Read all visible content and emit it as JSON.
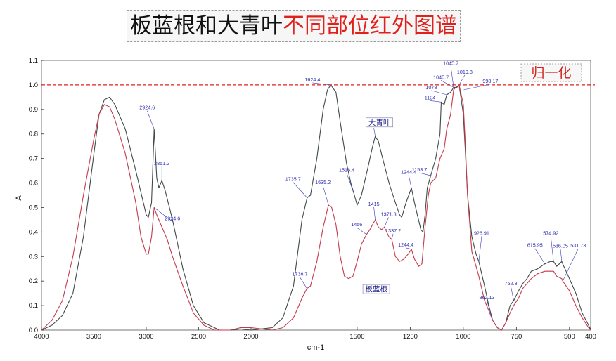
{
  "title": {
    "black": "板蓝根和大青叶",
    "red": "不同部位红外图谱"
  },
  "chart_data": {
    "type": "line",
    "xlabel": "cm-1",
    "ylabel": "A",
    "xlim": [
      4000,
      400
    ],
    "ylim": [
      0.0,
      1.1
    ],
    "x_ticks": [
      "4000",
      "3500",
      "3000",
      "2500",
      "2000",
      "1500",
      "1250",
      "1000",
      "750",
      "500",
      "400"
    ],
    "y_ticks": [
      "0.0",
      "0.1",
      "0.2",
      "0.3",
      "0.4",
      "0.5",
      "0.6",
      "0.7",
      "0.8",
      "0.9",
      "1.0",
      "1.1"
    ],
    "x_tick_values": [
      4000,
      3500,
      3000,
      2500,
      2000,
      1500,
      1250,
      1000,
      750,
      500,
      400
    ],
    "y_tick_values": [
      0.0,
      0.1,
      0.2,
      0.3,
      0.4,
      0.5,
      0.6,
      0.7,
      0.8,
      0.9,
      1.0,
      1.1
    ],
    "grid": false,
    "reference_line": {
      "y": 1.0,
      "label": "归一化",
      "color": "#e0211b"
    },
    "series": [
      {
        "name": "大青叶",
        "color": "#3f4a48",
        "points": [
          [
            4000,
            0.0
          ],
          [
            3900,
            0.02
          ],
          [
            3800,
            0.06
          ],
          [
            3700,
            0.15
          ],
          [
            3600,
            0.38
          ],
          [
            3500,
            0.72
          ],
          [
            3450,
            0.88
          ],
          [
            3400,
            0.94
          ],
          [
            3350,
            0.95
          ],
          [
            3300,
            0.92
          ],
          [
            3200,
            0.82
          ],
          [
            3100,
            0.65
          ],
          [
            3000,
            0.47
          ],
          [
            2980,
            0.46
          ],
          [
            2950,
            0.52
          ],
          [
            2924.6,
            0.82
          ],
          [
            2900,
            0.62
          ],
          [
            2880,
            0.58
          ],
          [
            2851.2,
            0.61
          ],
          [
            2820,
            0.57
          ],
          [
            2750,
            0.45
          ],
          [
            2650,
            0.25
          ],
          [
            2550,
            0.1
          ],
          [
            2450,
            0.03
          ],
          [
            2350,
            0.01
          ],
          [
            2300,
            0.0
          ],
          [
            2200,
            0.0
          ],
          [
            2100,
            0.005
          ],
          [
            2000,
            0.0
          ],
          [
            1900,
            0.01
          ],
          [
            1850,
            0.05
          ],
          [
            1800,
            0.18
          ],
          [
            1760,
            0.45
          ],
          [
            1735.7,
            0.54
          ],
          [
            1720,
            0.55
          ],
          [
            1690,
            0.7
          ],
          [
            1660,
            0.9
          ],
          [
            1640,
            0.98
          ],
          [
            1624.4,
            1.0
          ],
          [
            1600,
            0.97
          ],
          [
            1580,
            0.85
          ],
          [
            1550,
            0.68
          ],
          [
            1530,
            0.6
          ],
          [
            1516.4,
            0.56
          ],
          [
            1500,
            0.51
          ],
          [
            1480,
            0.55
          ],
          [
            1450,
            0.66
          ],
          [
            1430,
            0.74
          ],
          [
            1415,
            0.79
          ],
          [
            1400,
            0.77
          ],
          [
            1380,
            0.7
          ],
          [
            1350,
            0.6
          ],
          [
            1320,
            0.52
          ],
          [
            1300,
            0.47
          ],
          [
            1290,
            0.46
          ],
          [
            1270,
            0.52
          ],
          [
            1244.4,
            0.58
          ],
          [
            1230,
            0.52
          ],
          [
            1200,
            0.41
          ],
          [
            1190,
            0.4
          ],
          [
            1180,
            0.47
          ],
          [
            1170,
            0.58
          ],
          [
            1153.7,
            0.63
          ],
          [
            1130,
            0.7
          ],
          [
            1110,
            0.8
          ],
          [
            1104,
            0.93
          ],
          [
            1090,
            0.92
          ],
          [
            1078,
            0.96
          ],
          [
            1060,
            0.97
          ],
          [
            1045.7,
            0.99
          ],
          [
            1030,
            0.99
          ],
          [
            1019.8,
            1.0
          ],
          [
            1000,
            0.88
          ],
          [
            990,
            0.72
          ],
          [
            980,
            0.55
          ],
          [
            960,
            0.38
          ],
          [
            940,
            0.31
          ],
          [
            926.91,
            0.28
          ],
          [
            900,
            0.18
          ],
          [
            880,
            0.1
          ],
          [
            862.13,
            0.04
          ],
          [
            840,
            0.01
          ],
          [
            820,
            0.0
          ],
          [
            800,
            0.03
          ],
          [
            780,
            0.1
          ],
          [
            762.8,
            0.12
          ],
          [
            740,
            0.16
          ],
          [
            720,
            0.19
          ],
          [
            700,
            0.21
          ],
          [
            680,
            0.24
          ],
          [
            650,
            0.25
          ],
          [
            615.95,
            0.27
          ],
          [
            590,
            0.28
          ],
          [
            574.92,
            0.28
          ],
          [
            560,
            0.26
          ],
          [
            536.05,
            0.28
          ],
          [
            531.73,
            0.27
          ],
          [
            500,
            0.21
          ],
          [
            470,
            0.15
          ],
          [
            440,
            0.07
          ],
          [
            410,
            0.02
          ],
          [
            400,
            0.0
          ]
        ]
      },
      {
        "name": "板蓝根",
        "color": "#c43a4c",
        "points": [
          [
            4000,
            0.0
          ],
          [
            3900,
            0.04
          ],
          [
            3800,
            0.12
          ],
          [
            3700,
            0.3
          ],
          [
            3600,
            0.55
          ],
          [
            3500,
            0.78
          ],
          [
            3450,
            0.88
          ],
          [
            3400,
            0.92
          ],
          [
            3350,
            0.91
          ],
          [
            3300,
            0.86
          ],
          [
            3200,
            0.72
          ],
          [
            3100,
            0.52
          ],
          [
            3050,
            0.38
          ],
          [
            3000,
            0.31
          ],
          [
            2980,
            0.31
          ],
          [
            2950,
            0.38
          ],
          [
            2924.6,
            0.5
          ],
          [
            2900,
            0.47
          ],
          [
            2850,
            0.42
          ],
          [
            2800,
            0.37
          ],
          [
            2750,
            0.3
          ],
          [
            2650,
            0.18
          ],
          [
            2550,
            0.07
          ],
          [
            2450,
            0.02
          ],
          [
            2350,
            0.0
          ],
          [
            2200,
            0.0
          ],
          [
            2100,
            0.01
          ],
          [
            2000,
            0.01
          ],
          [
            1900,
            0.0
          ],
          [
            1850,
            0.01
          ],
          [
            1800,
            0.05
          ],
          [
            1760,
            0.13
          ],
          [
            1736.7,
            0.17
          ],
          [
            1720,
            0.18
          ],
          [
            1690,
            0.28
          ],
          [
            1660,
            0.42
          ],
          [
            1635.2,
            0.51
          ],
          [
            1620,
            0.5
          ],
          [
            1600,
            0.43
          ],
          [
            1580,
            0.3
          ],
          [
            1560,
            0.22
          ],
          [
            1540,
            0.21
          ],
          [
            1520,
            0.22
          ],
          [
            1500,
            0.28
          ],
          [
            1480,
            0.35
          ],
          [
            1456,
            0.39
          ],
          [
            1440,
            0.41
          ],
          [
            1415,
            0.45
          ],
          [
            1400,
            0.42
          ],
          [
            1385,
            0.41
          ],
          [
            1371.8,
            0.42
          ],
          [
            1350,
            0.38
          ],
          [
            1337.2,
            0.37
          ],
          [
            1320,
            0.3
          ],
          [
            1300,
            0.28
          ],
          [
            1280,
            0.29
          ],
          [
            1260,
            0.31
          ],
          [
            1244.4,
            0.33
          ],
          [
            1230,
            0.29
          ],
          [
            1210,
            0.26
          ],
          [
            1195,
            0.27
          ],
          [
            1180,
            0.42
          ],
          [
            1165,
            0.55
          ],
          [
            1153.7,
            0.6
          ],
          [
            1130,
            0.62
          ],
          [
            1110,
            0.7
          ],
          [
            1090,
            0.74
          ],
          [
            1078,
            0.82
          ],
          [
            1060,
            0.88
          ],
          [
            1045.7,
            0.98
          ],
          [
            1035,
            0.99
          ],
          [
            1019.8,
            1.0
          ],
          [
            1000,
            0.92
          ],
          [
            990,
            0.75
          ],
          [
            980,
            0.55
          ],
          [
            960,
            0.32
          ],
          [
            940,
            0.26
          ],
          [
            926.91,
            0.22
          ],
          [
            900,
            0.12
          ],
          [
            880,
            0.08
          ],
          [
            862.13,
            0.04
          ],
          [
            840,
            0.01
          ],
          [
            820,
            0.0
          ],
          [
            800,
            0.03
          ],
          [
            780,
            0.07
          ],
          [
            762.8,
            0.1
          ],
          [
            740,
            0.13
          ],
          [
            720,
            0.17
          ],
          [
            700,
            0.19
          ],
          [
            680,
            0.21
          ],
          [
            650,
            0.23
          ],
          [
            615.95,
            0.24
          ],
          [
            590,
            0.24
          ],
          [
            574.92,
            0.24
          ],
          [
            560,
            0.22
          ],
          [
            536.05,
            0.21
          ],
          [
            531.73,
            0.2
          ],
          [
            500,
            0.16
          ],
          [
            470,
            0.1
          ],
          [
            440,
            0.05
          ],
          [
            410,
            0.01
          ],
          [
            400,
            0.0
          ]
        ]
      }
    ],
    "annotations": [
      {
        "text": "2924.6",
        "x": 2924.6,
        "y": 0.82,
        "dx": -10,
        "dy": -28
      },
      {
        "text": "2851.2",
        "x": 2851.2,
        "y": 0.61,
        "dx": 0,
        "dy": -22
      },
      {
        "text": "2924.6",
        "x": 2924.6,
        "y": 0.5,
        "dx": 26,
        "dy": 18
      },
      {
        "text": "1735.7",
        "x": 1735.7,
        "y": 0.54,
        "dx": -20,
        "dy": -24
      },
      {
        "text": "1624.4",
        "x": 1624.4,
        "y": 1.0,
        "dx": -26,
        "dy": -5
      },
      {
        "text": "1516.4",
        "x": 1516.4,
        "y": 0.56,
        "dx": -10,
        "dy": -30
      },
      {
        "text": "1415",
        "x": 1415,
        "y": 0.79,
        "dx": -2,
        "dy": -14
      },
      {
        "text": "1244.4",
        "x": 1244.4,
        "y": 0.58,
        "dx": -4,
        "dy": -20
      },
      {
        "text": "1153.7",
        "x": 1153.7,
        "y": 0.63,
        "dx": -16,
        "dy": -6
      },
      {
        "text": "1104",
        "x": 1104,
        "y": 0.93,
        "dx": -16,
        "dy": -4
      },
      {
        "text": "1078",
        "x": 1078,
        "y": 0.96,
        "dx": -22,
        "dy": -8
      },
      {
        "text": "1045.7",
        "x": 1045.7,
        "y": 0.99,
        "dx": -18,
        "dy": -12
      },
      {
        "text": "1045.7",
        "x": 1045.7,
        "y": 0.99,
        "dx": -4,
        "dy": -32
      },
      {
        "text": "1019.8",
        "x": 1019.8,
        "y": 1.0,
        "dx": 8,
        "dy": -16
      },
      {
        "text": "998.17",
        "x": 998.17,
        "y": 0.98,
        "dx": 38,
        "dy": -10
      },
      {
        "text": "1736.7",
        "x": 1736.7,
        "y": 0.17,
        "dx": -10,
        "dy": -18
      },
      {
        "text": "1635.2",
        "x": 1635.2,
        "y": 0.51,
        "dx": -8,
        "dy": -30
      },
      {
        "text": "1456",
        "x": 1456,
        "y": 0.39,
        "dx": -14,
        "dy": -12
      },
      {
        "text": "1415",
        "x": 1415,
        "y": 0.45,
        "dx": -2,
        "dy": -20
      },
      {
        "text": "1371.8",
        "x": 1371.8,
        "y": 0.42,
        "dx": 6,
        "dy": -16
      },
      {
        "text": "1337.2",
        "x": 1337.2,
        "y": 0.37,
        "dx": 2,
        "dy": -10
      },
      {
        "text": "1244.4",
        "x": 1244.4,
        "y": 0.33,
        "dx": -8,
        "dy": -4
      },
      {
        "text": "926.91",
        "x": 926.91,
        "y": 0.28,
        "dx": 4,
        "dy": -38
      },
      {
        "text": "862.13",
        "x": 862.13,
        "y": 0.04,
        "dx": -8,
        "dy": -30
      },
      {
        "text": "762.8",
        "x": 762.8,
        "y": 0.12,
        "dx": -4,
        "dy": -22
      },
      {
        "text": "615.95",
        "x": 615.95,
        "y": 0.27,
        "dx": -14,
        "dy": -24
      },
      {
        "text": "574.92",
        "x": 574.92,
        "y": 0.28,
        "dx": -4,
        "dy": -38
      },
      {
        "text": "536.05",
        "x": 536.05,
        "y": 0.28,
        "dx": -2,
        "dy": -20
      },
      {
        "text": "531.73",
        "x": 531.73,
        "y": 0.2,
        "dx": 22,
        "dy": -48
      }
    ],
    "legend_labels": [
      {
        "text": "大青叶",
        "series": "大青叶",
        "x": 1395,
        "y": 0.84
      },
      {
        "text": "板蓝根",
        "series": "板蓝根",
        "x": 1410,
        "y": 0.16
      }
    ]
  }
}
